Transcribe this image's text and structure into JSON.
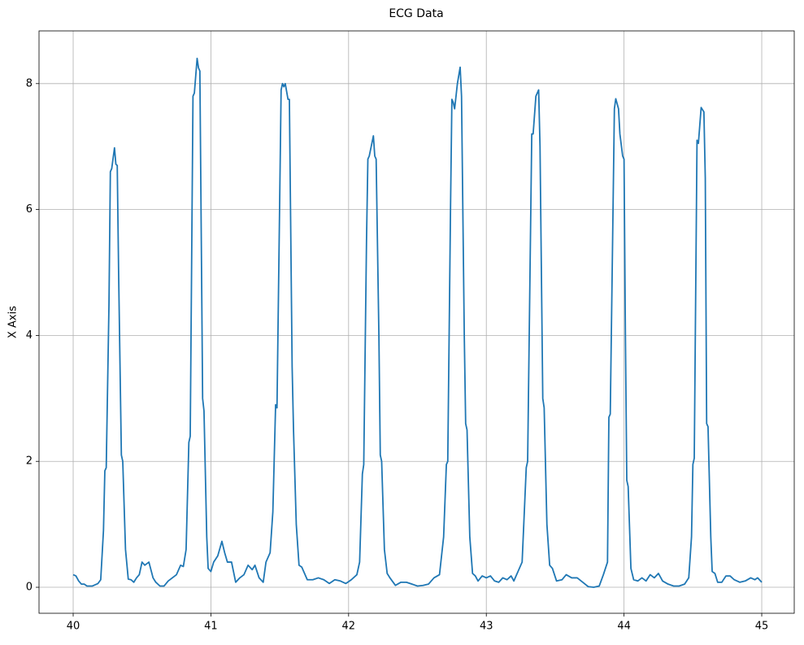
{
  "chart_data": {
    "type": "line",
    "title": "ECG Data",
    "y_label": "X Axis",
    "xlim": [
      39.752,
      45.236
    ],
    "ylim": [
      -0.413,
      8.837
    ],
    "xticks": [
      40,
      41,
      42,
      43,
      44,
      45
    ],
    "yticks": [
      0,
      2,
      4,
      6,
      8
    ],
    "grid": true,
    "x": [
      40.0,
      40.02,
      40.04,
      40.06,
      40.08,
      40.1,
      40.14,
      40.18,
      40.2,
      40.22,
      40.23,
      40.24,
      40.26,
      40.27,
      40.28,
      40.3,
      40.31,
      40.32,
      40.33,
      40.35,
      40.36,
      40.38,
      40.4,
      40.42,
      40.44,
      40.46,
      40.48,
      40.5,
      40.52,
      40.55,
      40.58,
      40.6,
      40.63,
      40.66,
      40.69,
      40.72,
      40.75,
      40.78,
      40.8,
      40.82,
      40.84,
      40.85,
      40.87,
      40.88,
      40.9,
      40.91,
      40.92,
      40.94,
      40.95,
      40.97,
      40.98,
      41.0,
      41.02,
      41.05,
      41.08,
      41.1,
      41.12,
      41.15,
      41.18,
      41.21,
      41.24,
      41.27,
      41.3,
      41.32,
      41.35,
      41.38,
      41.4,
      41.43,
      41.45,
      41.47,
      41.48,
      41.51,
      41.52,
      41.53,
      41.54,
      41.56,
      41.57,
      41.59,
      41.6,
      41.62,
      41.64,
      41.66,
      41.7,
      41.74,
      41.78,
      41.82,
      41.86,
      41.9,
      41.94,
      41.98,
      42.02,
      42.06,
      42.08,
      42.1,
      42.11,
      42.13,
      42.14,
      42.15,
      42.18,
      42.19,
      42.2,
      42.22,
      42.23,
      42.24,
      42.26,
      42.28,
      42.3,
      42.34,
      42.38,
      42.42,
      42.46,
      42.5,
      42.54,
      42.58,
      42.62,
      42.66,
      42.69,
      42.71,
      42.72,
      42.74,
      42.75,
      42.76,
      42.77,
      42.79,
      42.81,
      42.82,
      42.84,
      42.85,
      42.86,
      42.88,
      42.9,
      42.92,
      42.94,
      42.97,
      43.0,
      43.03,
      43.06,
      43.09,
      43.12,
      43.15,
      43.18,
      43.2,
      43.23,
      43.26,
      43.29,
      43.3,
      43.33,
      43.34,
      43.36,
      43.38,
      43.39,
      43.41,
      43.42,
      43.44,
      43.46,
      43.48,
      43.51,
      43.55,
      43.58,
      43.62,
      43.66,
      43.7,
      43.74,
      43.78,
      43.82,
      43.85,
      43.88,
      43.89,
      43.9,
      43.93,
      43.94,
      43.96,
      43.97,
      43.99,
      44.0,
      44.01,
      44.02,
      44.03,
      44.05,
      44.07,
      44.1,
      44.13,
      44.16,
      44.19,
      44.22,
      44.25,
      44.28,
      44.32,
      44.36,
      44.4,
      44.44,
      44.47,
      44.49,
      44.5,
      44.51,
      44.53,
      44.54,
      44.56,
      44.58,
      44.59,
      44.6,
      44.61,
      44.63,
      44.64,
      44.66,
      44.68,
      44.71,
      44.74,
      44.77,
      44.8,
      44.84,
      44.88,
      44.92,
      44.95,
      44.97,
      45.0
    ],
    "series": [
      {
        "color": "#1f77b4",
        "values": [
          0.2,
          0.18,
          0.1,
          0.05,
          0.05,
          0.02,
          0.02,
          0.06,
          0.12,
          0.9,
          1.85,
          1.9,
          4.5,
          6.6,
          6.65,
          6.98,
          6.72,
          6.7,
          5.0,
          2.1,
          2.0,
          0.6,
          0.13,
          0.12,
          0.08,
          0.15,
          0.2,
          0.4,
          0.35,
          0.4,
          0.15,
          0.08,
          0.02,
          0.02,
          0.1,
          0.15,
          0.2,
          0.35,
          0.33,
          0.6,
          2.3,
          2.4,
          7.8,
          7.85,
          8.4,
          8.25,
          8.2,
          3.0,
          2.8,
          0.8,
          0.3,
          0.25,
          0.4,
          0.5,
          0.73,
          0.55,
          0.4,
          0.4,
          0.08,
          0.15,
          0.2,
          0.35,
          0.28,
          0.35,
          0.15,
          0.08,
          0.4,
          0.55,
          1.2,
          2.9,
          2.85,
          7.9,
          8.0,
          7.95,
          8.0,
          7.75,
          7.75,
          3.5,
          2.5,
          1.0,
          0.35,
          0.32,
          0.12,
          0.12,
          0.15,
          0.12,
          0.06,
          0.12,
          0.1,
          0.06,
          0.12,
          0.2,
          0.4,
          1.8,
          1.95,
          5.5,
          6.8,
          6.85,
          7.17,
          6.85,
          6.8,
          4.0,
          2.1,
          2.0,
          0.6,
          0.22,
          0.15,
          0.03,
          0.08,
          0.08,
          0.05,
          0.02,
          0.03,
          0.05,
          0.15,
          0.2,
          0.8,
          1.95,
          2.0,
          6.0,
          7.75,
          7.7,
          7.6,
          8.0,
          8.26,
          7.8,
          4.0,
          2.6,
          2.5,
          0.8,
          0.22,
          0.18,
          0.1,
          0.18,
          0.15,
          0.18,
          0.1,
          0.08,
          0.15,
          0.12,
          0.18,
          0.1,
          0.25,
          0.4,
          1.9,
          2.0,
          7.2,
          7.2,
          7.8,
          7.9,
          7.0,
          3.0,
          2.85,
          1.0,
          0.35,
          0.3,
          0.1,
          0.12,
          0.2,
          0.15,
          0.15,
          0.08,
          0.01,
          0.0,
          0.02,
          0.2,
          0.4,
          2.7,
          2.75,
          7.6,
          7.76,
          7.6,
          7.2,
          6.85,
          6.8,
          4.0,
          1.7,
          1.6,
          0.3,
          0.12,
          0.1,
          0.15,
          0.1,
          0.2,
          0.15,
          0.22,
          0.1,
          0.05,
          0.02,
          0.02,
          0.05,
          0.15,
          0.8,
          1.95,
          2.05,
          7.1,
          7.05,
          7.62,
          7.55,
          6.5,
          2.6,
          2.55,
          0.8,
          0.25,
          0.22,
          0.08,
          0.08,
          0.18,
          0.18,
          0.12,
          0.08,
          0.1,
          0.15,
          0.12,
          0.15,
          0.08
        ]
      }
    ]
  }
}
